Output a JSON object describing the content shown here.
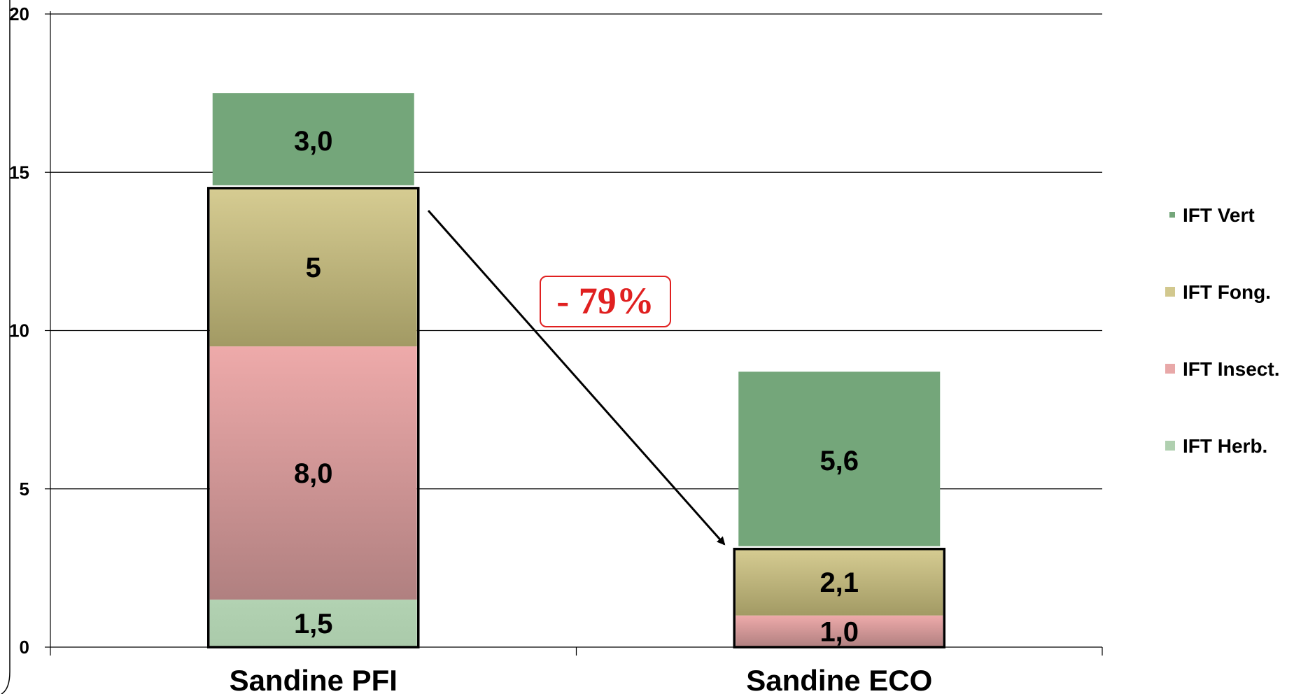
{
  "chart_data": {
    "type": "bar",
    "stacked": true,
    "categories": [
      "Sandine PFI",
      "Sandine ECO"
    ],
    "ylim": [
      0,
      20
    ],
    "yticks": [
      "0",
      "5",
      "10",
      "15",
      "20"
    ],
    "grid": true,
    "legend_position": "right",
    "series": [
      {
        "name": "IFT Herb.",
        "values": [
          1.5,
          0
        ],
        "labels": [
          "1,5",
          ""
        ],
        "color": "#b0d0b0"
      },
      {
        "name": "IFT Insect.",
        "values": [
          8.0,
          1.0
        ],
        "labels": [
          "8,0",
          "1,0"
        ],
        "color": "#e8a8a8"
      },
      {
        "name": "IFT Fong.",
        "values": [
          5,
          2.1
        ],
        "labels": [
          "5",
          "2,1"
        ],
        "color": "#d2c88e"
      },
      {
        "name": "IFT Vert",
        "values": [
          3.0,
          5.6
        ],
        "labels": [
          "3,0",
          "5,6"
        ],
        "color": "#74a67a"
      }
    ],
    "legend_order": [
      "IFT Vert",
      "IFT Fong.",
      "IFT Insect.",
      "IFT Herb."
    ],
    "annotation": {
      "text": "- 79%",
      "color": "#e02020"
    }
  }
}
